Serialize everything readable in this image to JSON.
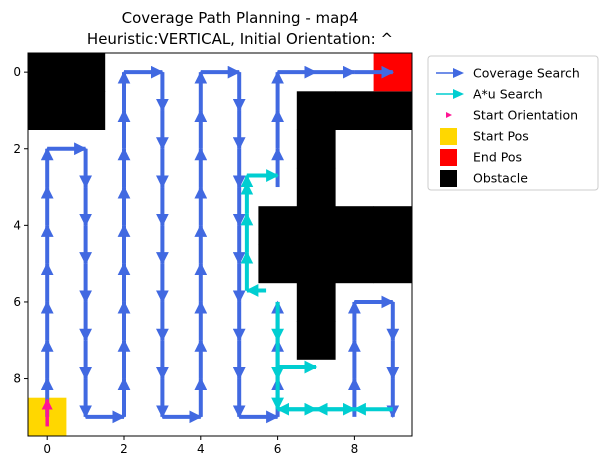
{
  "chart_data": {
    "type": "path-plot",
    "title": "Coverage Path Planning - map4",
    "subtitle": "Heuristic:VERTICAL, Initial Orientation: ^",
    "xlabel": "",
    "ylabel": "",
    "xlim": [
      -0.5,
      9.5
    ],
    "ylim": [
      9.5,
      -0.5
    ],
    "x_ticks": [
      0,
      2,
      4,
      6,
      8
    ],
    "y_ticks": [
      0,
      2,
      4,
      6,
      8
    ],
    "grid": false,
    "legend_position": "outside-top-right",
    "legend": [
      {
        "label": "Coverage Search",
        "kind": "line-arrow",
        "color": "#4169e1"
      },
      {
        "label": "A*u Search",
        "kind": "line-arrow",
        "color": "#00ced1"
      },
      {
        "label": "Start Orientation",
        "kind": "arrow",
        "color": "#ff1493"
      },
      {
        "label": "Start Pos",
        "kind": "square",
        "color": "#ffd700"
      },
      {
        "label": "End Pos",
        "kind": "square",
        "color": "#ff0000"
      },
      {
        "label": "Obstacle",
        "kind": "square",
        "color": "#000000"
      }
    ],
    "obstacles": [
      [
        0,
        0
      ],
      [
        1,
        0
      ],
      [
        0,
        1
      ],
      [
        1,
        1
      ],
      [
        7,
        1
      ],
      [
        8,
        1
      ],
      [
        9,
        1
      ],
      [
        7,
        2
      ],
      [
        7,
        3
      ],
      [
        6,
        4
      ],
      [
        7,
        4
      ],
      [
        8,
        4
      ],
      [
        9,
        4
      ],
      [
        6,
        5
      ],
      [
        7,
        5
      ],
      [
        8,
        5
      ],
      [
        9,
        5
      ],
      [
        7,
        6
      ],
      [
        7,
        7
      ]
    ],
    "start_pos": [
      0,
      9
    ],
    "end_pos": [
      9,
      0
    ],
    "start_orientation": "up",
    "coverage_path": [
      [
        0,
        9
      ],
      [
        0,
        8
      ],
      [
        0,
        7
      ],
      [
        0,
        6
      ],
      [
        0,
        5
      ],
      [
        0,
        4
      ],
      [
        0,
        3
      ],
      [
        0,
        2
      ],
      [
        1,
        2
      ],
      [
        1,
        3
      ],
      [
        1,
        4
      ],
      [
        1,
        5
      ],
      [
        1,
        6
      ],
      [
        1,
        7
      ],
      [
        1,
        8
      ],
      [
        1,
        9
      ],
      [
        2,
        9
      ],
      [
        2,
        8
      ],
      [
        2,
        7
      ],
      [
        2,
        6
      ],
      [
        2,
        5
      ],
      [
        2,
        4
      ],
      [
        2,
        3
      ],
      [
        2,
        2
      ],
      [
        2,
        1
      ],
      [
        2,
        0
      ],
      [
        3,
        0
      ],
      [
        3,
        1
      ],
      [
        3,
        2
      ],
      [
        3,
        3
      ],
      [
        3,
        4
      ],
      [
        3,
        5
      ],
      [
        3,
        6
      ],
      [
        3,
        7
      ],
      [
        3,
        8
      ],
      [
        3,
        9
      ],
      [
        4,
        9
      ],
      [
        4,
        8
      ],
      [
        4,
        7
      ],
      [
        4,
        6
      ],
      [
        4,
        5
      ],
      [
        4,
        4
      ],
      [
        4,
        3
      ],
      [
        4,
        2
      ],
      [
        4,
        1
      ],
      [
        4,
        0
      ],
      [
        5,
        0
      ],
      [
        5,
        1
      ],
      [
        5,
        2
      ],
      [
        5,
        3
      ],
      [
        5,
        4
      ],
      [
        5,
        5
      ],
      [
        5,
        6
      ],
      [
        5,
        7
      ],
      [
        5,
        8
      ],
      [
        5,
        9
      ],
      [
        6,
        9
      ],
      [
        6,
        8
      ],
      [
        6,
        7
      ],
      [
        6,
        6
      ],
      [
        8,
        9
      ],
      [
        8,
        8
      ],
      [
        8,
        7
      ],
      [
        8,
        6
      ],
      [
        9,
        6
      ],
      [
        9,
        7
      ],
      [
        9,
        8
      ],
      [
        9,
        9
      ]
    ],
    "coverage_path_2": [
      [
        6,
        3
      ],
      [
        6,
        2
      ],
      [
        6,
        1
      ],
      [
        6,
        0
      ],
      [
        7,
        0
      ],
      [
        8,
        0
      ],
      [
        9,
        0
      ]
    ],
    "astar_paths": [
      [
        [
          6,
          6
        ],
        [
          6,
          7
        ],
        [
          6,
          8
        ],
        [
          6,
          8.8
        ],
        [
          7,
          8.8
        ],
        [
          8,
          8.8
        ]
      ],
      [
        [
          6,
          7.7
        ],
        [
          7,
          7.7
        ]
      ],
      [
        [
          9,
          8.8
        ],
        [
          8,
          8.8
        ],
        [
          7,
          8.8
        ],
        [
          6,
          8.8
        ]
      ],
      [
        [
          5.7,
          5.7
        ],
        [
          5.2,
          5.7
        ],
        [
          5.2,
          4.7
        ],
        [
          5.2,
          3.7
        ],
        [
          5.2,
          2.9
        ],
        [
          5.2,
          2.7
        ],
        [
          6,
          2.7
        ]
      ]
    ]
  }
}
